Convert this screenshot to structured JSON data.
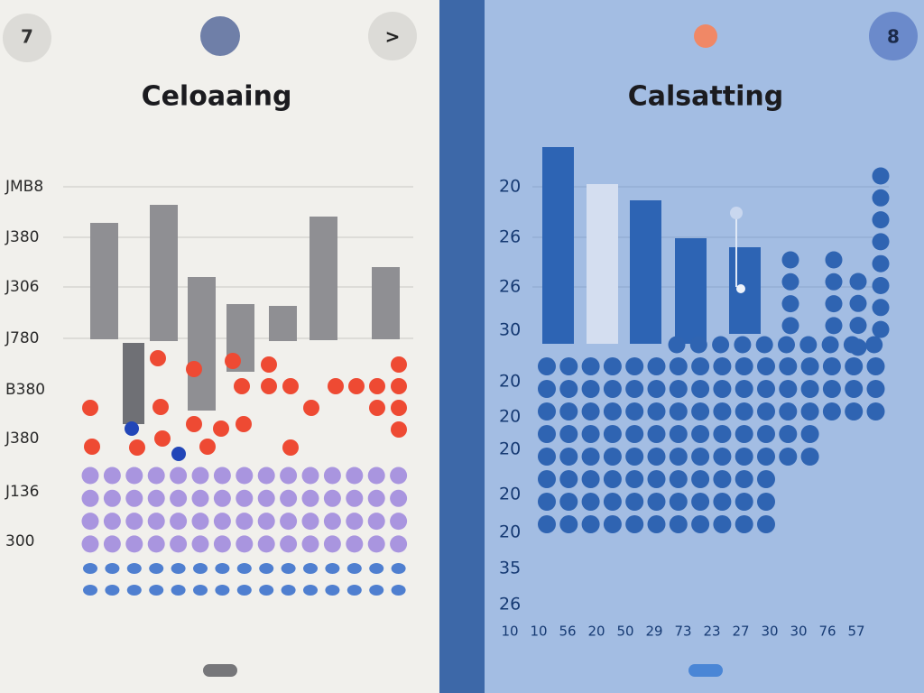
{
  "left": {
    "title": "Celoaaing",
    "back": "7",
    "next": ">",
    "axis_labels": [
      "JMB8",
      "J380",
      "J306",
      "J780",
      "B380",
      "J380",
      "J136",
      "300"
    ]
  },
  "right": {
    "title": "Calsatting",
    "menu": "8",
    "axis_labels": [
      "20",
      "26",
      "26",
      "30",
      "20",
      "20",
      "20",
      "20",
      "20",
      "35",
      "26"
    ],
    "bottom_row": [
      "10",
      "10",
      "56",
      "20",
      "50",
      "29",
      "73",
      "23",
      "27",
      "30",
      "30",
      "76",
      "57"
    ]
  }
}
